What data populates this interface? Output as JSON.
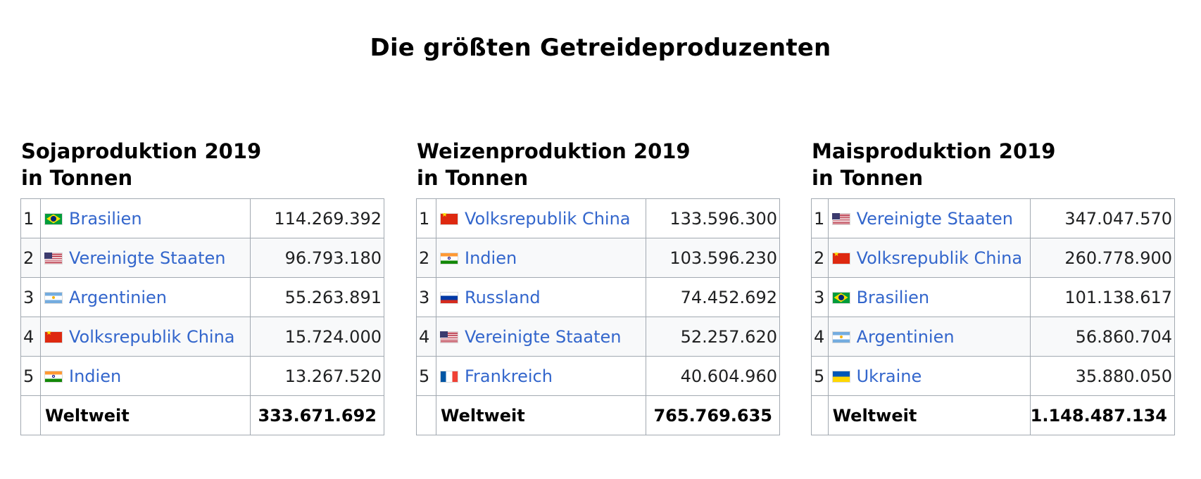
{
  "title": "Die größten Getreideproduzenten",
  "tables": [
    {
      "heading_line1": "Sojaproduktion 2019",
      "heading_line2": "in Tonnen",
      "rows": [
        {
          "rank": "1",
          "country": "Brasilien",
          "flag": "brazil-flag-icon",
          "value": "114.269.392"
        },
        {
          "rank": "2",
          "country": "Vereinigte Staaten",
          "flag": "usa-flag-icon",
          "value": "96.793.180"
        },
        {
          "rank": "3",
          "country": "Argentinien",
          "flag": "argentina-flag-icon",
          "value": "55.263.891"
        },
        {
          "rank": "4",
          "country": "Volksrepublik China",
          "flag": "china-flag-icon",
          "value": "15.724.000"
        },
        {
          "rank": "5",
          "country": "Indien",
          "flag": "india-flag-icon",
          "value": "13.267.520"
        }
      ],
      "total_label": "Weltweit",
      "total_value": "333.671.692"
    },
    {
      "heading_line1": "Weizenproduktion 2019",
      "heading_line2": "in Tonnen",
      "rows": [
        {
          "rank": "1",
          "country": "Volksrepublik China",
          "flag": "china-flag-icon",
          "value": "133.596.300"
        },
        {
          "rank": "2",
          "country": "Indien",
          "flag": "india-flag-icon",
          "value": "103.596.230"
        },
        {
          "rank": "3",
          "country": "Russland",
          "flag": "russia-flag-icon",
          "value": "74.452.692"
        },
        {
          "rank": "4",
          "country": "Vereinigte Staaten",
          "flag": "usa-flag-icon",
          "value": "52.257.620"
        },
        {
          "rank": "5",
          "country": "Frankreich",
          "flag": "france-flag-icon",
          "value": "40.604.960"
        }
      ],
      "total_label": "Weltweit",
      "total_value": "765.769.635"
    },
    {
      "heading_line1": "Maisproduktion 2019",
      "heading_line2": "in Tonnen",
      "rows": [
        {
          "rank": "1",
          "country": "Vereinigte Staaten",
          "flag": "usa-flag-icon",
          "value": "347.047.570"
        },
        {
          "rank": "2",
          "country": "Volksrepublik China",
          "flag": "china-flag-icon",
          "value": "260.778.900"
        },
        {
          "rank": "3",
          "country": "Brasilien",
          "flag": "brazil-flag-icon",
          "value": "101.138.617"
        },
        {
          "rank": "4",
          "country": "Argentinien",
          "flag": "argentina-flag-icon",
          "value": "56.860.704"
        },
        {
          "rank": "5",
          "country": "Ukraine",
          "flag": "ukraine-flag-icon",
          "value": "35.880.050"
        }
      ],
      "total_label": "Weltweit",
      "total_value": "1.148.487.134"
    }
  ],
  "colors": {
    "link": "#3366cc",
    "border": "#a2a9b1",
    "alt_row_bg": "#f8f9fa"
  }
}
